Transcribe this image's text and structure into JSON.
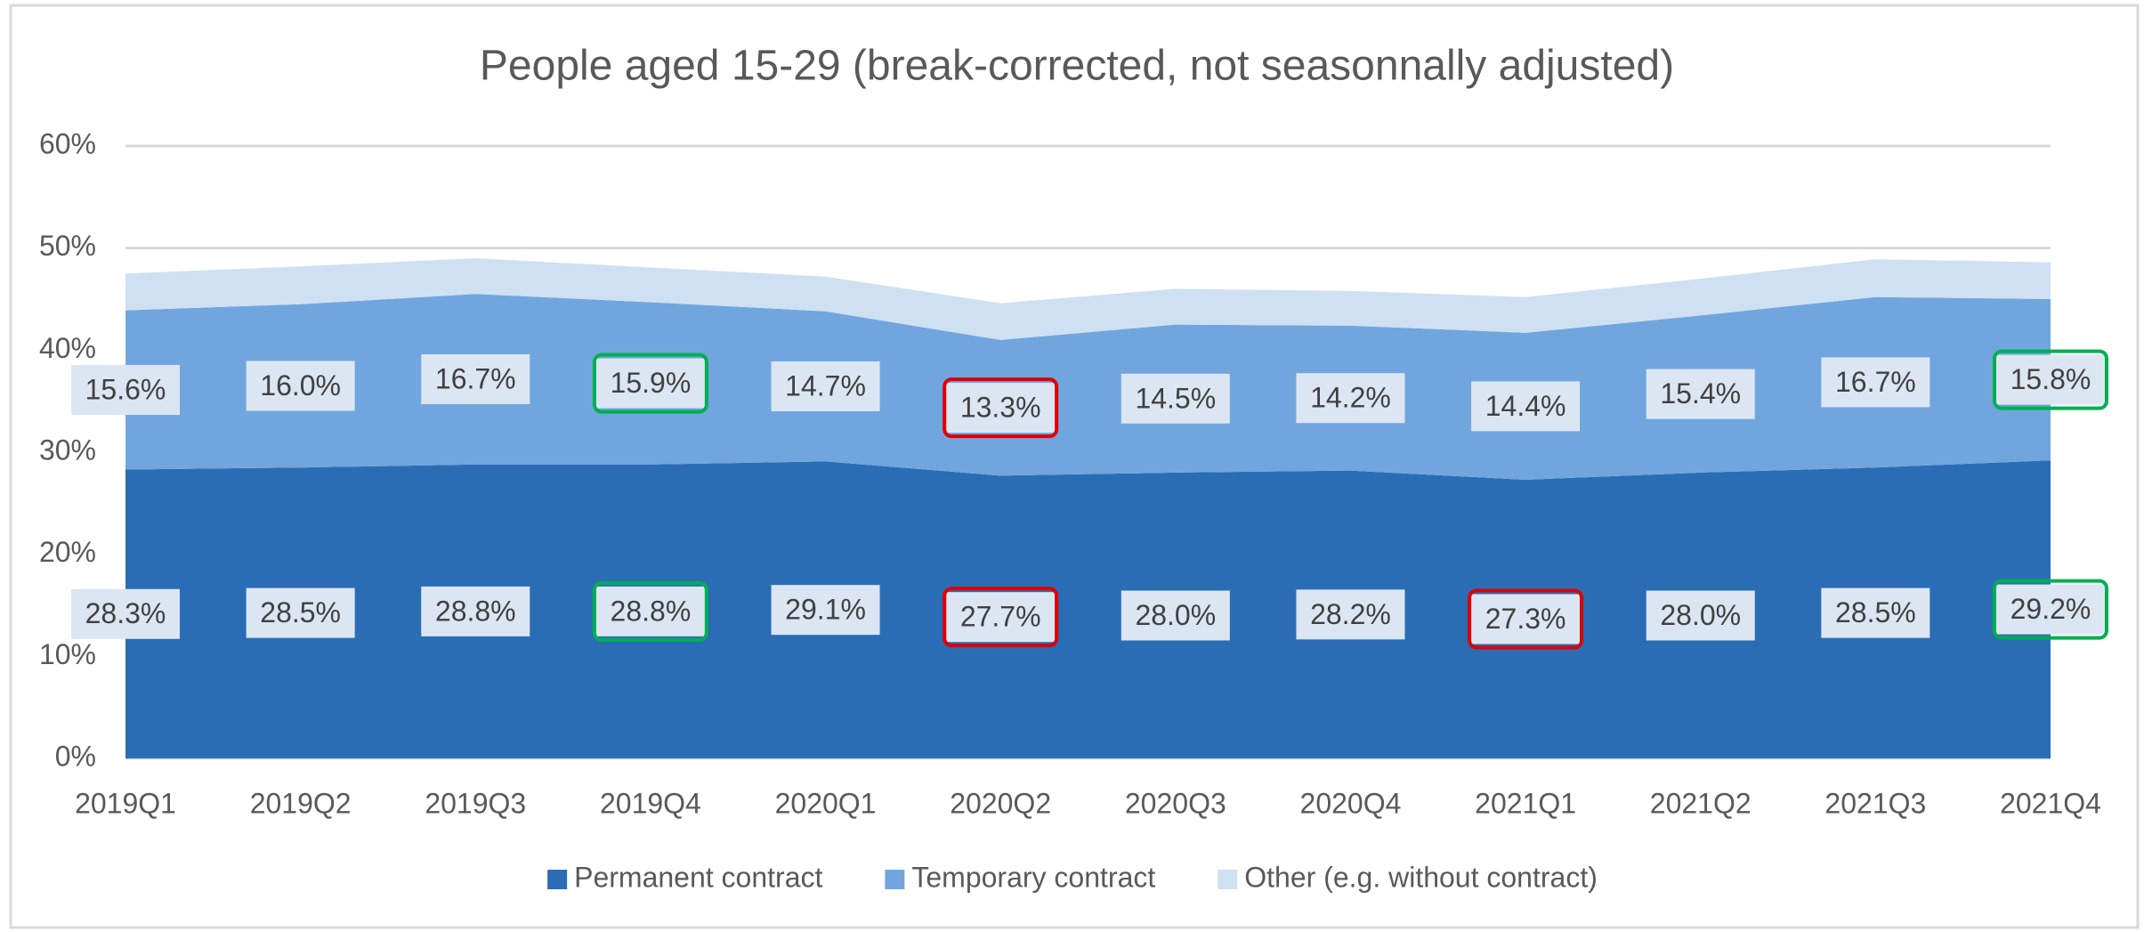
{
  "chart_data": {
    "type": "stacked_area",
    "title": "People aged 15-29 (break-corrected, not seasonnally adjusted)",
    "categories": [
      "2019Q1",
      "2019Q2",
      "2019Q3",
      "2019Q4",
      "2020Q1",
      "2020Q2",
      "2020Q3",
      "2020Q4",
      "2021Q1",
      "2021Q2",
      "2021Q3",
      "2021Q4"
    ],
    "series": [
      {
        "name": "Permanent contract",
        "color": "#2a6db5",
        "values": [
          28.3,
          28.5,
          28.8,
          28.8,
          29.1,
          27.7,
          28.0,
          28.2,
          27.3,
          28.0,
          28.5,
          29.2
        ],
        "value_labels": [
          "28.3%",
          "28.5%",
          "28.8%",
          "28.8%",
          "29.1%",
          "27.7%",
          "28.0%",
          "28.2%",
          "27.3%",
          "28.0%",
          "28.5%",
          "29.2%"
        ],
        "label_box_colors": [
          null,
          null,
          null,
          "#00b050",
          null,
          "#e00000",
          null,
          null,
          "#e00000",
          null,
          null,
          "#00b050"
        ]
      },
      {
        "name": "Temporary contract",
        "color": "#70a6dd",
        "values": [
          15.6,
          16.0,
          16.7,
          15.9,
          14.7,
          13.3,
          14.5,
          14.2,
          14.4,
          15.4,
          16.7,
          15.8
        ],
        "value_labels": [
          "15.6%",
          "16.0%",
          "16.7%",
          "15.9%",
          "14.7%",
          "13.3%",
          "14.5%",
          "14.2%",
          "14.4%",
          "15.4%",
          "16.7%",
          "15.8%"
        ],
        "label_box_colors": [
          null,
          null,
          null,
          "#00b050",
          null,
          "#e00000",
          null,
          null,
          null,
          null,
          null,
          "#00b050"
        ]
      },
      {
        "name": "Other (e.g. without contract)",
        "color": "#cfe0f3",
        "values": [
          3.6,
          3.7,
          3.5,
          3.4,
          3.4,
          3.6,
          3.5,
          3.4,
          3.5,
          3.6,
          3.7,
          3.6
        ]
      }
    ],
    "ylim": [
      0,
      60
    ],
    "yticks": [
      {
        "value": 0,
        "label": "0%"
      },
      {
        "value": 10,
        "label": "10%"
      },
      {
        "value": 20,
        "label": "20%"
      },
      {
        "value": 30,
        "label": "30%"
      },
      {
        "value": 40,
        "label": "40%"
      },
      {
        "value": 50,
        "label": "50%"
      },
      {
        "value": 60,
        "label": "60%"
      }
    ],
    "grid": true,
    "legend": "bottom"
  }
}
